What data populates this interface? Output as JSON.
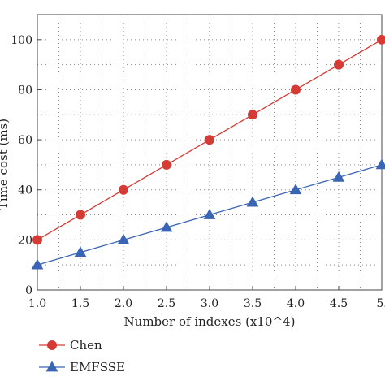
{
  "chart_data": {
    "type": "line",
    "title": "",
    "xlabel": "Number of indexes (x10^4)",
    "ylabel": "Time cost (ms)",
    "x": [
      1.0,
      1.5,
      2.0,
      2.5,
      3.0,
      3.5,
      4.0,
      4.5,
      5.0
    ],
    "x_tick_labels": [
      "1.0",
      "1.5",
      "2.0",
      "2.5",
      "3.0",
      "3.5",
      "4.0",
      "4.5",
      "5."
    ],
    "y_ticks": [
      0,
      20,
      40,
      60,
      80,
      100
    ],
    "xlim": [
      1.0,
      5.0
    ],
    "ylim": [
      0,
      110
    ],
    "grid": true,
    "legend_position": "bottom-left, below plot",
    "series": [
      {
        "name": "Chen",
        "values": [
          20,
          30,
          40,
          50,
          60,
          70,
          80,
          90,
          100
        ],
        "color": "#d63a34",
        "marker": "circle"
      },
      {
        "name": "EMFSSE",
        "values": [
          10,
          15,
          20,
          25,
          30,
          35,
          40,
          45,
          50
        ],
        "color": "#3a64b4",
        "marker": "triangle"
      }
    ]
  }
}
